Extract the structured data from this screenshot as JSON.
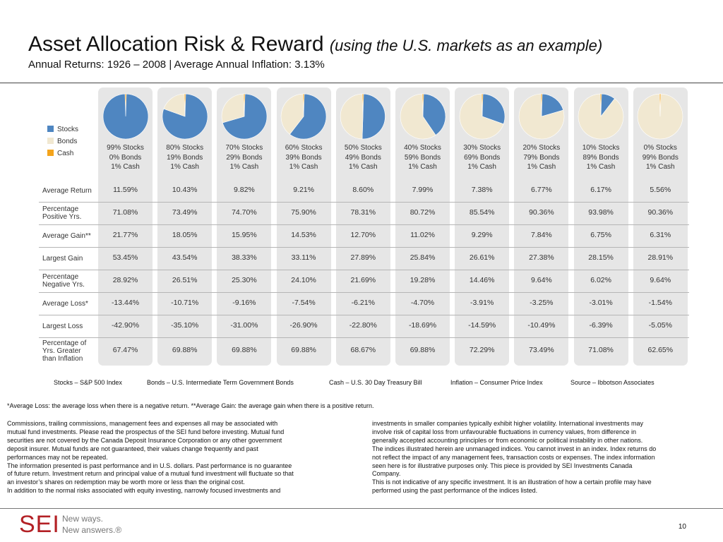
{
  "header": {
    "title": "Asset Allocation Risk & Reward",
    "title_suffix": "(using the U.S. markets as an example)",
    "subtitle": "Annual Returns: 1926 – 2008 | Average Annual Inflation: 3.13%"
  },
  "legend": [
    {
      "label": "Stocks",
      "color": "#4f86c1"
    },
    {
      "label": "Bonds",
      "color": "#f1e8d1"
    },
    {
      "label": "Cash",
      "color": "#f4a41c"
    }
  ],
  "chart_data": {
    "type": "table",
    "allocations": [
      {
        "stocks": 99,
        "bonds": 0,
        "cash": 1,
        "lines": [
          "99% Stocks",
          "0% Bonds",
          "1% Cash"
        ]
      },
      {
        "stocks": 80,
        "bonds": 19,
        "cash": 1,
        "lines": [
          "80% Stocks",
          "19% Bonds",
          "1% Cash"
        ]
      },
      {
        "stocks": 70,
        "bonds": 29,
        "cash": 1,
        "lines": [
          "70% Stocks",
          "29% Bonds",
          "1% Cash"
        ]
      },
      {
        "stocks": 60,
        "bonds": 39,
        "cash": 1,
        "lines": [
          "60% Stocks",
          "39% Bonds",
          "1% Cash"
        ]
      },
      {
        "stocks": 50,
        "bonds": 49,
        "cash": 1,
        "lines": [
          "50% Stocks",
          "49% Bonds",
          "1% Cash"
        ]
      },
      {
        "stocks": 40,
        "bonds": 59,
        "cash": 1,
        "lines": [
          "40% Stocks",
          "59% Bonds",
          "1% Cash"
        ]
      },
      {
        "stocks": 30,
        "bonds": 69,
        "cash": 1,
        "lines": [
          "30% Stocks",
          "69% Bonds",
          "1% Cash"
        ]
      },
      {
        "stocks": 20,
        "bonds": 79,
        "cash": 1,
        "lines": [
          "20% Stocks",
          "79% Bonds",
          "1% Cash"
        ]
      },
      {
        "stocks": 10,
        "bonds": 89,
        "cash": 1,
        "lines": [
          "10% Stocks",
          "89% Bonds",
          "1% Cash"
        ]
      },
      {
        "stocks": 0,
        "bonds": 99,
        "cash": 1,
        "lines": [
          "0% Stocks",
          "99% Bonds",
          "1% Cash"
        ]
      }
    ],
    "rows": [
      {
        "label_lines": [
          "Average Return"
        ],
        "values": [
          "11.59%",
          "10.43%",
          "9.82%",
          "9.21%",
          "8.60%",
          "7.99%",
          "7.38%",
          "6.77%",
          "6.17%",
          "5.56%"
        ]
      },
      {
        "label_lines": [
          "Percentage",
          "Positive Yrs."
        ],
        "values": [
          "71.08%",
          "73.49%",
          "74.70%",
          "75.90%",
          "78.31%",
          "80.72%",
          "85.54%",
          "90.36%",
          "93.98%",
          "90.36%"
        ]
      },
      {
        "label_lines": [
          "Average Gain**"
        ],
        "values": [
          "21.77%",
          "18.05%",
          "15.95%",
          "14.53%",
          "12.70%",
          "11.02%",
          "9.29%",
          "7.84%",
          "6.75%",
          "6.31%"
        ]
      },
      {
        "label_lines": [
          "Largest Gain"
        ],
        "values": [
          "53.45%",
          "43.54%",
          "38.33%",
          "33.11%",
          "27.89%",
          "25.84%",
          "26.61%",
          "27.38%",
          "28.15%",
          "28.91%"
        ]
      },
      {
        "label_lines": [
          "Percentage",
          "Negative Yrs."
        ],
        "values": [
          "28.92%",
          "26.51%",
          "25.30%",
          "24.10%",
          "21.69%",
          "19.28%",
          "14.46%",
          "9.64%",
          "6.02%",
          "9.64%"
        ]
      },
      {
        "label_lines": [
          "Average Loss*"
        ],
        "values": [
          "-13.44%",
          "-10.71%",
          "-9.16%",
          "-7.54%",
          "-6.21%",
          "-4.70%",
          "-3.91%",
          "-3.25%",
          "-3.01%",
          "-1.54%"
        ]
      },
      {
        "label_lines": [
          "Largest Loss"
        ],
        "values": [
          "-42.90%",
          "-35.10%",
          "-31.00%",
          "-26.90%",
          "-22.80%",
          "-18.69%",
          "-14.59%",
          "-10.49%",
          "-6.39%",
          "-5.05%"
        ]
      },
      {
        "label_lines": [
          "Percentage of",
          "Yrs. Greater",
          "than Inflation"
        ],
        "values": [
          "67.47%",
          "69.88%",
          "69.88%",
          "69.88%",
          "68.67%",
          "69.88%",
          "72.29%",
          "73.49%",
          "71.08%",
          "62.65%"
        ]
      }
    ]
  },
  "sources": [
    "Stocks – S&P 500 Index",
    "Bonds – U.S. Intermediate Term Government Bonds",
    "Cash – U.S. 30 Day Treasury Bill",
    "Inflation – Consumer Price Index",
    "Source – Ibbotson Associates"
  ],
  "footnote": "*Average Loss: the average loss when there is a negative return.  **Average Gain: the average gain when there is a positive return.",
  "disclaimer_left": [
    "Commissions, trailing commissions, management fees and expenses all may be associated with",
    "mutual fund investments. Please read the prospectus of the SEI fund before investing. Mutual fund",
    "securities are not covered by the Canada Deposit Insurance Corporation or any other government",
    "deposit insurer. Mutual funds are not guaranteed, their values change frequently and past",
    "performances may not be repeated.",
    "The information presented is past performance and in U.S. dollars.  Past performance is no guarantee",
    "of future return.  Investment return and principal value of a mutual fund investment will fluctuate so that",
    "an investor’s shares on redemption may be worth more or less than the original cost.",
    "In addition to the normal risks associated with equity investing, narrowly focused investments and"
  ],
  "disclaimer_right": [
    "investments in smaller companies typically exhibit higher volatility.  International investments may",
    "involve risk of capital loss from unfavourable fluctuations in currency values, from difference in",
    "generally accepted accounting principles or from economic or political instability in other nations.",
    "The indices illustrated herein are unmanaged indices.  You cannot invest in an index.  Index returns do",
    "not reflect the impact of any management fees, transaction costs or expenses.  The index information",
    "seen here is for illustrative purposes only. This piece is provided by SEI Investments Canada",
    "Company.",
    "This is not indicative of any specific investment.  It is an illustration of how a certain profile may have",
    "performed using the past performance of the indices listed."
  ],
  "footer": {
    "logo": "SEI",
    "tagline_1": "New ways.",
    "tagline_2": "New answers.®",
    "page_number": "10"
  }
}
